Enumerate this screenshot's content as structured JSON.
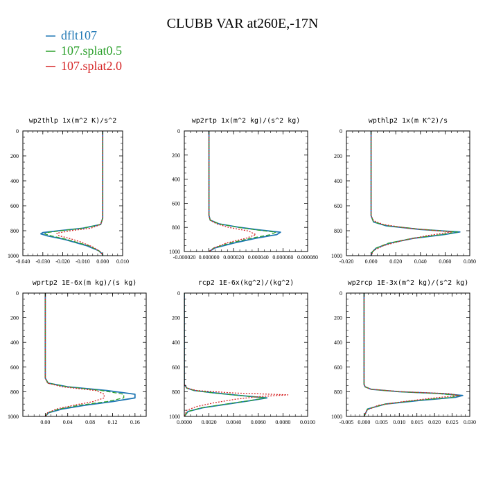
{
  "figure": {
    "title": "CLUBB VAR at260E,-17N"
  },
  "legend": [
    {
      "name": "dflt107",
      "color": "#1f77b4",
      "dash": "solid"
    },
    {
      "name": "107.splat0.5",
      "color": "#2ca02c",
      "dash": "dashed"
    },
    {
      "name": "107.splat2.0",
      "color": "#d62728",
      "dash": "dotted"
    }
  ],
  "chart_data": [
    {
      "type": "line",
      "title": "wp2thlp   1x(m^2 K)/s^2",
      "xlim": [
        -0.04,
        0.01
      ],
      "ylim": [
        1000,
        0
      ],
      "xticks": [
        -0.04,
        -0.03,
        -0.02,
        -0.01,
        0.0,
        0.01
      ],
      "xtick_labels": [
        "-0.040",
        "-0.030",
        "-0.020",
        "-0.010",
        "0.000",
        "0.010"
      ],
      "yticks": [
        0,
        200,
        400,
        600,
        800,
        1000
      ],
      "ytick_labels": [
        "0",
        "200",
        "400",
        "600",
        "800",
        "1000"
      ],
      "series": [
        {
          "name": "dflt107",
          "pressure": [
            0,
            700,
            750,
            780,
            800,
            815,
            825,
            840,
            870,
            920,
            960,
            990,
            1000
          ],
          "values": [
            0.0,
            0.0,
            -0.001,
            -0.01,
            -0.022,
            -0.03,
            -0.031,
            -0.028,
            -0.019,
            -0.008,
            -0.002,
            0.0,
            0.0
          ]
        },
        {
          "name": "107.splat0.5",
          "pressure": [
            0,
            700,
            750,
            780,
            800,
            815,
            825,
            840,
            870,
            920,
            960,
            990,
            1000
          ],
          "values": [
            0.0,
            0.0,
            -0.001,
            -0.01,
            -0.021,
            -0.028,
            -0.029,
            -0.026,
            -0.018,
            -0.007,
            -0.002,
            0.0,
            0.0
          ]
        },
        {
          "name": "107.splat2.0",
          "pressure": [
            0,
            700,
            750,
            780,
            800,
            820,
            840,
            860,
            890,
            930,
            970,
            1000
          ],
          "values": [
            0.0,
            0.0,
            -0.001,
            -0.006,
            -0.016,
            -0.023,
            -0.022,
            -0.017,
            -0.011,
            -0.005,
            -0.001,
            0.0
          ]
        }
      ]
    },
    {
      "type": "line",
      "title": "wp2rtp   1x(m^2 kg)/(s^2 kg)",
      "xlim": [
        -2e-05,
        8e-05
      ],
      "ylim": [
        1000,
        0
      ],
      "xticks": [
        -2e-05,
        0.0,
        2e-05,
        4e-05,
        6e-05,
        8e-05
      ],
      "xtick_labels": [
        "-0.000020",
        "0.000000",
        "0.000020",
        "0.000040",
        "0.000060",
        "0.000080"
      ],
      "yticks": [
        0,
        200,
        400,
        600,
        800,
        1000
      ],
      "ytick_labels": [
        "0",
        "200",
        "400",
        "600",
        "800",
        "1000"
      ],
      "series": [
        {
          "name": "dflt107",
          "pressure": [
            0,
            700,
            740,
            770,
            800,
            820,
            840,
            860,
            890,
            930,
            970,
            1000
          ],
          "values": [
            0.0,
            0.0,
            1e-06,
            8e-06,
            2.5e-05,
            4e-05,
            5.8e-05,
            5.5e-05,
            3.8e-05,
            2e-05,
            5e-06,
            0.0
          ]
        },
        {
          "name": "107.splat0.5",
          "pressure": [
            0,
            700,
            740,
            770,
            800,
            820,
            840,
            860,
            890,
            930,
            970,
            1000
          ],
          "values": [
            0.0,
            0.0,
            1e-06,
            8e-06,
            2.4e-05,
            3.8e-05,
            5.4e-05,
            5e-05,
            3.4e-05,
            1.7e-05,
            4e-06,
            0.0
          ]
        },
        {
          "name": "107.splat2.0",
          "pressure": [
            0,
            700,
            740,
            770,
            800,
            830,
            860,
            890,
            930,
            970,
            1000
          ],
          "values": [
            0.0,
            0.0,
            1e-06,
            6e-06,
            1.6e-05,
            3.2e-05,
            3.8e-05,
            3e-05,
            1.4e-05,
            4e-06,
            0.0
          ]
        }
      ]
    },
    {
      "type": "line",
      "title": "wpthlp2   1x(m K^2)/s",
      "xlim": [
        -0.02,
        0.08
      ],
      "ylim": [
        1000,
        0
      ],
      "xticks": [
        -0.02,
        0.0,
        0.02,
        0.04,
        0.06,
        0.08
      ],
      "xtick_labels": [
        "-0.020",
        "0.000",
        "0.020",
        "0.040",
        "0.060",
        "0.080"
      ],
      "yticks": [
        0,
        200,
        400,
        600,
        800,
        1000
      ],
      "ytick_labels": [
        "0",
        "200",
        "400",
        "600",
        "800",
        "1000"
      ],
      "series": [
        {
          "name": "dflt107",
          "pressure": [
            0,
            680,
            730,
            760,
            790,
            810,
            830,
            860,
            900,
            940,
            970,
            1000
          ],
          "values": [
            0.0,
            0.0,
            0.002,
            0.012,
            0.04,
            0.072,
            0.06,
            0.035,
            0.015,
            0.004,
            0.001,
            0.0
          ]
        },
        {
          "name": "107.splat0.5",
          "pressure": [
            0,
            680,
            730,
            760,
            790,
            810,
            830,
            860,
            900,
            940,
            970,
            1000
          ],
          "values": [
            0.0,
            0.0,
            0.002,
            0.013,
            0.042,
            0.07,
            0.058,
            0.034,
            0.014,
            0.004,
            0.001,
            0.0
          ]
        },
        {
          "name": "107.splat2.0",
          "pressure": [
            0,
            680,
            720,
            750,
            780,
            810,
            840,
            880,
            920,
            960,
            1000
          ],
          "values": [
            0.0,
            0.0,
            0.002,
            0.01,
            0.03,
            0.065,
            0.045,
            0.025,
            0.01,
            0.002,
            0.0
          ]
        }
      ]
    },
    {
      "type": "line",
      "title": "wprtp2   1E-6x(m kg)/(s kg)",
      "xlim": [
        -0.04,
        0.18
      ],
      "ylim": [
        1000,
        0
      ],
      "xticks": [
        0.0,
        0.04,
        0.08,
        0.12,
        0.16
      ],
      "xtick_labels": [
        "0.00",
        "0.04",
        "0.08",
        "0.12",
        "0.16"
      ],
      "yticks": [
        0,
        200,
        400,
        600,
        800,
        1000
      ],
      "ytick_labels": [
        "0",
        "200",
        "400",
        "600",
        "800",
        "1000"
      ],
      "series": [
        {
          "name": "dflt107",
          "pressure": [
            0,
            690,
            730,
            760,
            790,
            820,
            850,
            880,
            910,
            940,
            970,
            1000
          ],
          "values": [
            0.0,
            0.0,
            0.005,
            0.04,
            0.11,
            0.16,
            0.16,
            0.12,
            0.07,
            0.03,
            0.006,
            0.0
          ]
        },
        {
          "name": "107.splat0.5",
          "pressure": [
            0,
            690,
            730,
            760,
            790,
            820,
            850,
            880,
            910,
            940,
            970,
            1000
          ],
          "values": [
            0.0,
            0.0,
            0.005,
            0.04,
            0.1,
            0.14,
            0.14,
            0.11,
            0.06,
            0.025,
            0.005,
            0.0
          ]
        },
        {
          "name": "107.splat2.0",
          "pressure": [
            0,
            690,
            730,
            760,
            790,
            820,
            850,
            880,
            910,
            940,
            970,
            1000
          ],
          "values": [
            0.0,
            0.0,
            0.004,
            0.03,
            0.09,
            0.105,
            0.105,
            0.085,
            0.05,
            0.02,
            0.004,
            0.0
          ]
        }
      ]
    },
    {
      "type": "line",
      "title": "rcp2   1E-6x(kg^2)/(kg^2)",
      "xlim": [
        0.0,
        0.01
      ],
      "ylim": [
        1000,
        0
      ],
      "xticks": [
        0.0,
        0.002,
        0.004,
        0.006,
        0.008,
        0.01
      ],
      "xtick_labels": [
        "0.0000",
        "0.0020",
        "0.0040",
        "0.0060",
        "0.0080",
        "0.0100"
      ],
      "yticks": [
        0,
        200,
        400,
        600,
        800,
        1000
      ],
      "ytick_labels": [
        "0",
        "200",
        "400",
        "600",
        "800",
        "1000"
      ],
      "series": [
        {
          "name": "dflt107",
          "pressure": [
            0,
            740,
            770,
            790,
            810,
            830,
            850,
            870,
            900,
            930,
            960,
            1000
          ],
          "values": [
            0.0,
            0.0,
            0.0002,
            0.0008,
            0.0025,
            0.0045,
            0.0067,
            0.0055,
            0.0035,
            0.0015,
            0.0003,
            0.0
          ]
        },
        {
          "name": "107.splat0.5",
          "pressure": [
            0,
            740,
            770,
            790,
            810,
            830,
            850,
            870,
            900,
            930,
            960,
            1000
          ],
          "values": [
            0.0,
            0.0,
            0.0002,
            0.0008,
            0.0024,
            0.0044,
            0.0066,
            0.0054,
            0.0034,
            0.0014,
            0.0003,
            0.0
          ]
        },
        {
          "name": "107.splat2.0",
          "pressure": [
            0,
            740,
            770,
            790,
            810,
            825,
            840,
            860,
            890,
            920,
            950,
            1000
          ],
          "values": [
            0.0,
            0.0,
            0.0002,
            0.001,
            0.004,
            0.0084,
            0.006,
            0.0042,
            0.0024,
            0.001,
            0.0002,
            0.0
          ]
        }
      ]
    },
    {
      "type": "line",
      "title": "wp2rcp   1E-3x(m^2 kg)/(s^2 kg)",
      "xlim": [
        -0.005,
        0.03
      ],
      "ylim": [
        1000,
        0
      ],
      "xticks": [
        -0.005,
        0.0,
        0.005,
        0.01,
        0.015,
        0.02,
        0.025,
        0.03
      ],
      "xtick_labels": [
        "-0.005",
        "0.000",
        "0.005",
        "0.010",
        "0.015",
        "0.020",
        "0.025",
        "0.030"
      ],
      "yticks": [
        0,
        200,
        400,
        600,
        800,
        1000
      ],
      "ytick_labels": [
        "0",
        "200",
        "400",
        "600",
        "800",
        "1000"
      ],
      "series": [
        {
          "name": "dflt107",
          "pressure": [
            0,
            740,
            760,
            780,
            800,
            815,
            830,
            845,
            870,
            900,
            940,
            1000
          ],
          "values": [
            0.0,
            0.0,
            0.0003,
            0.002,
            0.01,
            0.022,
            0.028,
            0.026,
            0.016,
            0.006,
            0.001,
            0.0
          ]
        },
        {
          "name": "107.splat0.5",
          "pressure": [
            0,
            740,
            760,
            780,
            800,
            815,
            830,
            845,
            870,
            900,
            940,
            1000
          ],
          "values": [
            0.0,
            0.0,
            0.0003,
            0.002,
            0.01,
            0.021,
            0.027,
            0.025,
            0.015,
            0.006,
            0.001,
            0.0
          ]
        },
        {
          "name": "107.splat2.0",
          "pressure": [
            0,
            740,
            760,
            780,
            800,
            815,
            830,
            850,
            880,
            910,
            950,
            1000
          ],
          "values": [
            0.0,
            0.0,
            0.0003,
            0.002,
            0.011,
            0.024,
            0.027,
            0.02,
            0.011,
            0.004,
            0.0008,
            0.0
          ]
        }
      ]
    }
  ]
}
